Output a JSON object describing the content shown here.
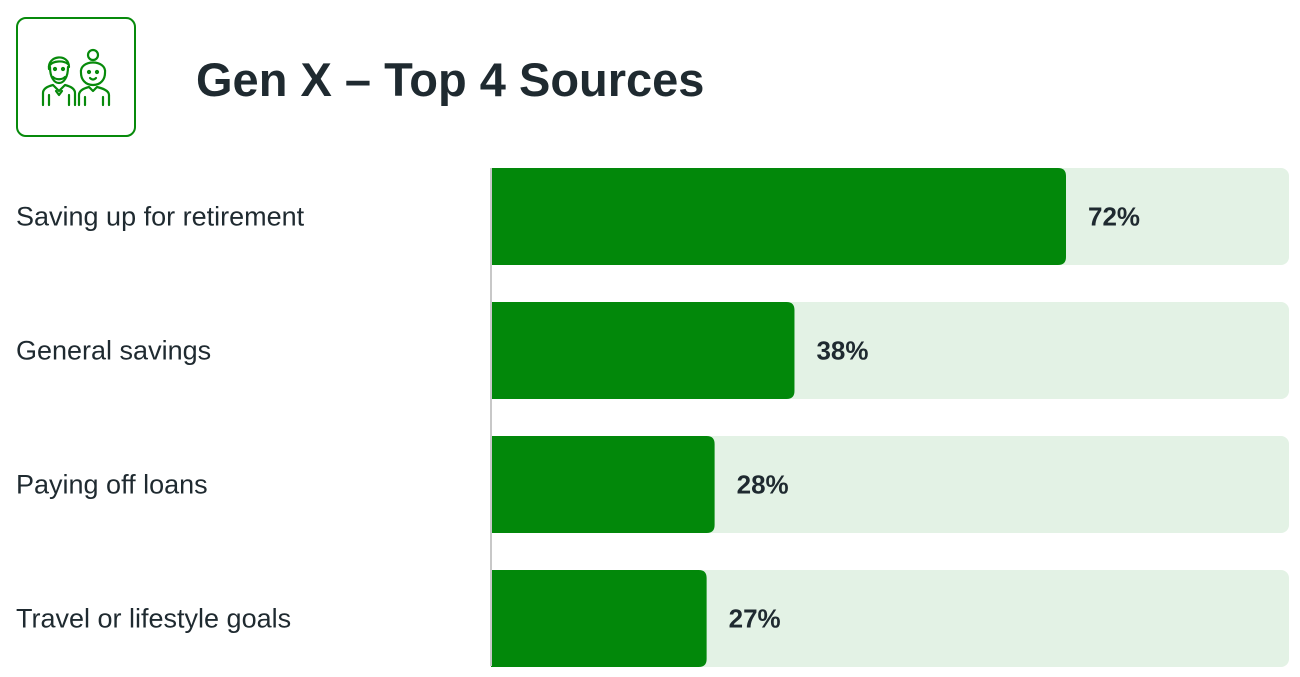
{
  "header": {
    "title": "Gen X – Top 4 Sources",
    "icon": "couple-icon"
  },
  "colors": {
    "bar": "#02880a",
    "track": "#e3f2e5",
    "accent": "#078a0b",
    "text": "#1f2a30",
    "axis": "#c8c8c8"
  },
  "chart_data": {
    "type": "bar",
    "orientation": "horizontal",
    "title": "Gen X – Top 4 Sources",
    "categories": [
      "Saving up for retirement",
      "General savings",
      "Paying off loans",
      "Travel or lifestyle goals"
    ],
    "values": [
      72,
      38,
      28,
      27
    ],
    "value_labels": [
      "72%",
      "38%",
      "28%",
      "27%"
    ],
    "unit": "%",
    "xlim": [
      0,
      100
    ],
    "grid": false,
    "legend": "none"
  }
}
